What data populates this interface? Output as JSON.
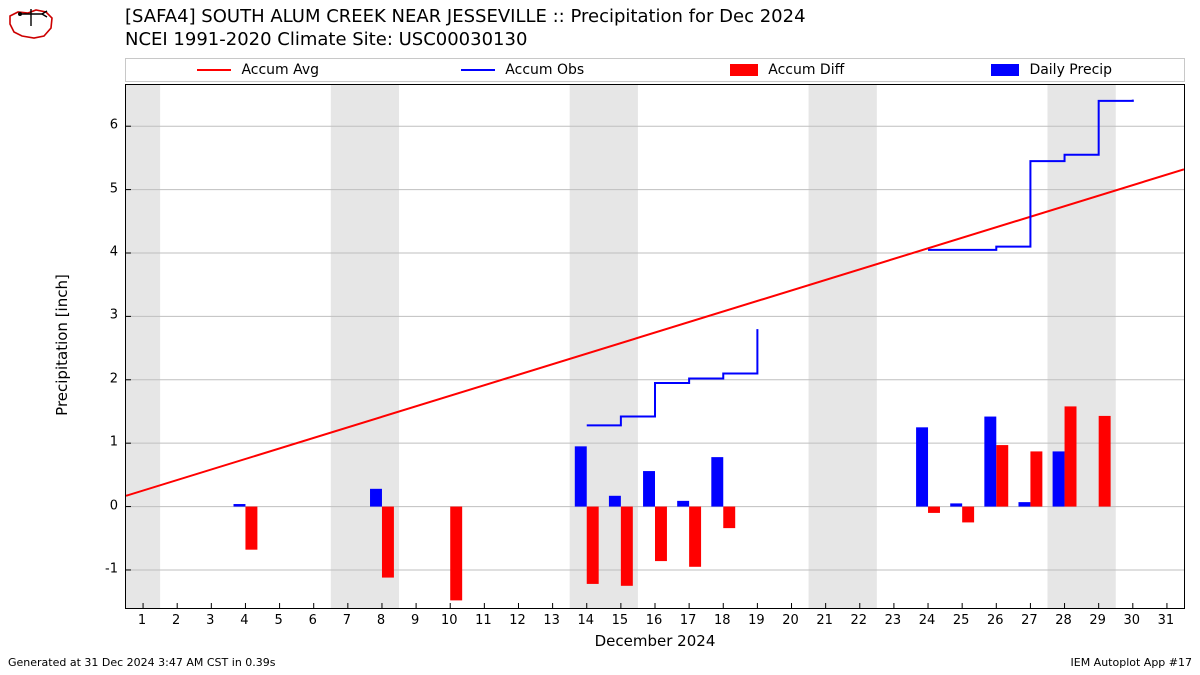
{
  "title_line1": "[SAFA4] SOUTH ALUM CREEK NEAR JESSEVILLE :: Precipitation for Dec 2024",
  "title_line2": "NCEI 1991-2020 Climate Site: USC00030130",
  "legend": {
    "accum_avg": "Accum Avg",
    "accum_obs": "Accum Obs",
    "accum_diff": "Accum Diff",
    "daily_precip": "Daily Precip"
  },
  "ylabel": "Precipitation [inch]",
  "xlabel": "December 2024",
  "footer_left": "Generated at 31 Dec 2024 3:47 AM CST in 0.39s",
  "footer_right": "IEM Autoplot App #17",
  "colors": {
    "accum_avg": "#ff0000",
    "accum_obs": "#0000ff",
    "accum_diff": "#ff0000",
    "daily_precip": "#0000ff",
    "weekend_band": "#e6e6e6",
    "grid": "#bfbfbf",
    "plot_border": "#000000",
    "legend_border": "#c8c8c8",
    "background": "#ffffff",
    "text": "#000000"
  },
  "fonts": {
    "title_size_pt": 18,
    "label_size_pt": 15,
    "tick_size_pt": 13,
    "legend_size_pt": 14,
    "footer_size_pt": 11
  },
  "chart": {
    "type": "combo-bar-line",
    "xlim": [
      0.5,
      31.5
    ],
    "ylim": [
      -1.6,
      6.65
    ],
    "ytick_step": 1,
    "yticks": [
      -1,
      0,
      1,
      2,
      3,
      4,
      5,
      6
    ],
    "xticks": [
      1,
      2,
      3,
      4,
      5,
      6,
      7,
      8,
      9,
      10,
      11,
      12,
      13,
      14,
      15,
      16,
      17,
      18,
      19,
      20,
      21,
      22,
      23,
      24,
      25,
      26,
      27,
      28,
      29,
      30,
      31
    ],
    "weekend_days": [
      1,
      7,
      8,
      14,
      15,
      21,
      22,
      28,
      29
    ],
    "bar_width": 0.35,
    "line_width_avg": 2,
    "line_width_obs": 2,
    "accum_avg_start": [
      0.5,
      0.17
    ],
    "accum_avg_end": [
      31.5,
      5.32
    ],
    "accum_obs": [
      [
        14,
        1.28
      ],
      [
        15,
        1.42
      ],
      [
        16,
        1.95
      ],
      [
        17,
        2.02
      ],
      [
        18,
        2.1
      ],
      [
        19,
        2.8
      ],
      [
        24,
        4.05
      ],
      [
        25,
        4.05
      ],
      [
        26,
        4.1
      ],
      [
        27,
        5.45
      ],
      [
        28,
        5.55
      ],
      [
        29,
        6.4
      ],
      [
        30,
        6.42
      ]
    ],
    "obs_break_between": [
      19,
      24
    ],
    "accum_diff": {
      "4": -0.68,
      "8": -1.12,
      "10": -1.48,
      "14": -1.22,
      "15": -1.25,
      "16": -0.86,
      "17": -0.95,
      "18": -0.34,
      "24": -0.1,
      "25": -0.25,
      "26": 0.97,
      "27": 0.87,
      "28": 1.58,
      "29": 1.43
    },
    "daily_precip": {
      "4": 0.04,
      "8": 0.28,
      "14": 0.95,
      "15": 0.17,
      "16": 0.56,
      "17": 0.09,
      "18": 0.78,
      "24": 1.25,
      "25": 0.05,
      "26": 1.42,
      "27": 0.07,
      "28": 0.87
    }
  }
}
